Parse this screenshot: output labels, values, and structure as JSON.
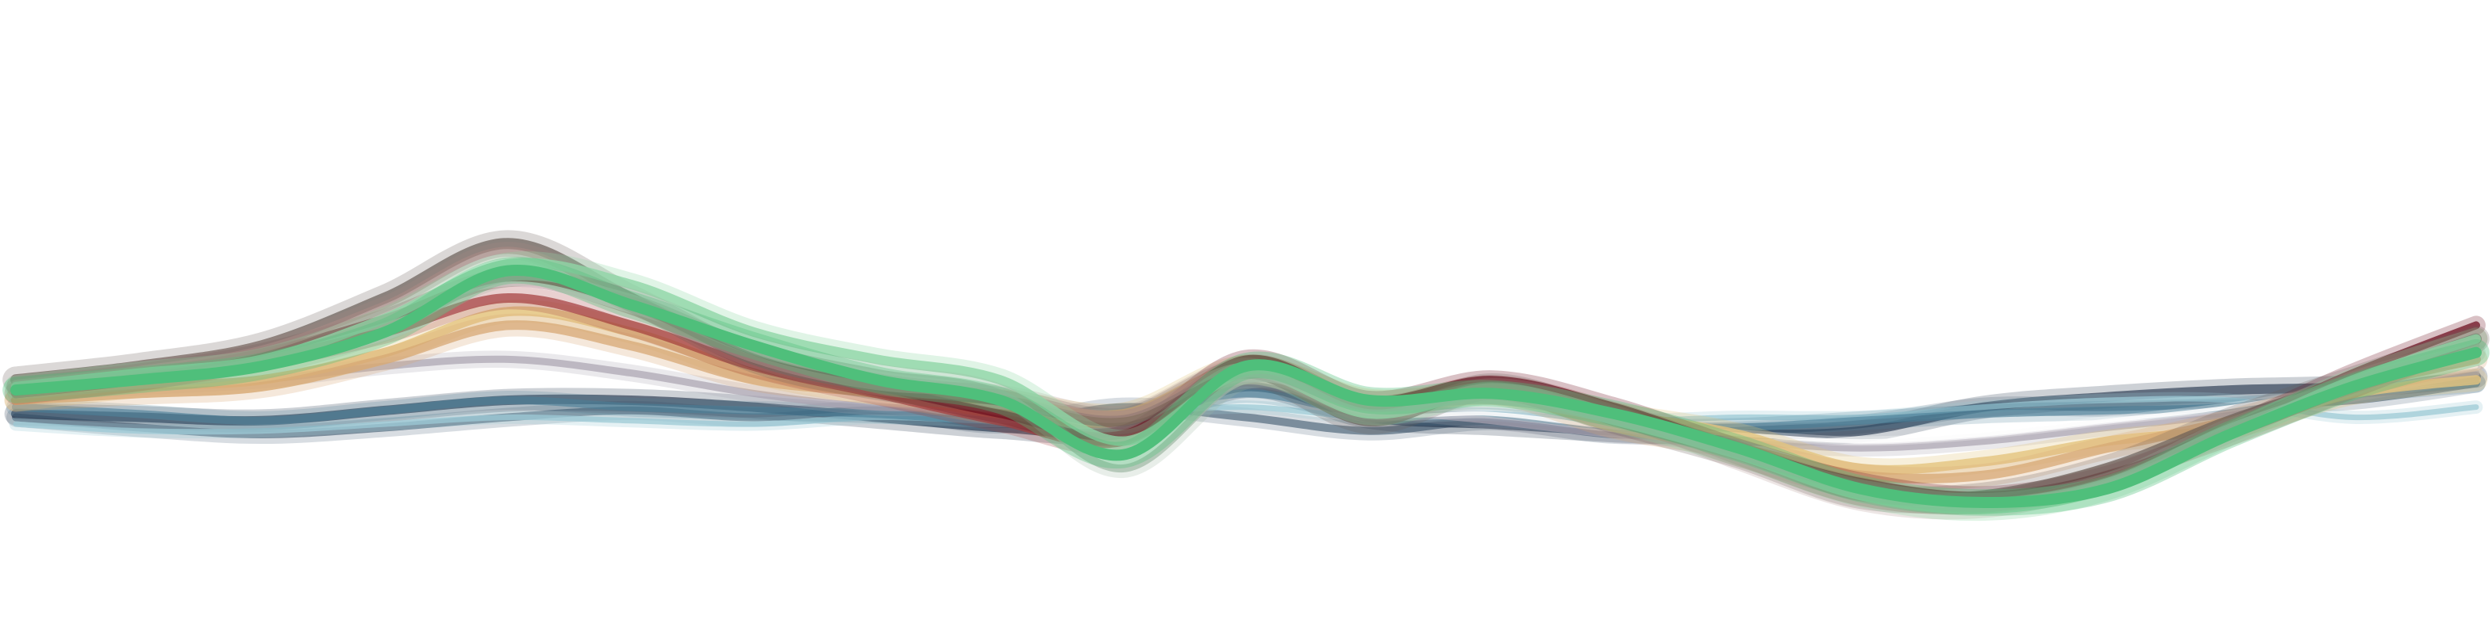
{
  "chart_data": {
    "type": "line",
    "title": "",
    "xlabel": "",
    "ylabel": "",
    "axes_visible": false,
    "grid": false,
    "legend": "none",
    "x_range": [
      0,
      100
    ],
    "y_range": [
      -1,
      1
    ],
    "x": [
      0,
      5,
      10,
      15,
      20,
      25,
      30,
      35,
      40,
      45,
      50,
      55,
      60,
      65,
      70,
      75,
      80,
      85,
      90,
      95,
      100
    ],
    "series": [
      {
        "color": "#2f4a63",
        "opacity": 0.55,
        "width": 10,
        "values": [
          -0.05,
          -0.08,
          -0.1,
          -0.08,
          -0.05,
          -0.03,
          -0.05,
          -0.03,
          -0.07,
          -0.02,
          -0.05,
          -0.09,
          -0.06,
          -0.1,
          -0.09,
          -0.07,
          -0.02,
          -0.02,
          -0.01,
          0.0,
          0.05
        ]
      },
      {
        "color": "#26384f",
        "opacity": 0.65,
        "width": 12,
        "values": [
          -0.04,
          -0.05,
          -0.06,
          -0.03,
          0.0,
          0.0,
          -0.02,
          -0.05,
          -0.08,
          -0.09,
          0.04,
          -0.05,
          -0.07,
          -0.09,
          -0.1,
          -0.09,
          -0.02,
          0.01,
          0.03,
          0.04,
          0.07
        ]
      },
      {
        "color": "#9ccad6",
        "opacity": 0.75,
        "width": 7,
        "values": [
          -0.07,
          -0.09,
          -0.09,
          -0.07,
          -0.05,
          -0.06,
          -0.07,
          -0.05,
          -0.06,
          -0.04,
          -0.02,
          -0.05,
          -0.04,
          -0.06,
          -0.05,
          -0.05,
          -0.02,
          0.0,
          0.0,
          -0.05,
          -0.02
        ]
      },
      {
        "color": "#4a7f97",
        "opacity": 0.6,
        "width": 10,
        "values": [
          -0.02,
          -0.04,
          -0.06,
          -0.03,
          0.0,
          -0.02,
          -0.03,
          -0.04,
          -0.06,
          -0.05,
          0.02,
          -0.04,
          -0.05,
          -0.08,
          -0.08,
          -0.06,
          -0.04,
          -0.03,
          -0.02,
          0.02,
          0.05
        ]
      },
      {
        "color": "#a9a3b0",
        "opacity": 0.7,
        "width": 9,
        "values": [
          0.02,
          0.04,
          0.06,
          0.1,
          0.12,
          0.08,
          0.02,
          -0.02,
          -0.02,
          -0.06,
          0.06,
          -0.02,
          -0.06,
          -0.1,
          -0.12,
          -0.14,
          -0.12,
          -0.08,
          -0.04,
          0.02,
          0.08
        ]
      },
      {
        "color": "#ffffff",
        "opacity": 0.85,
        "width": 5,
        "values": [
          0.04,
          0.06,
          0.08,
          0.16,
          0.2,
          0.12,
          0.06,
          0.0,
          -0.02,
          -0.06,
          0.06,
          -0.04,
          -0.04,
          -0.08,
          -0.1,
          -0.12,
          -0.1,
          -0.06,
          -0.02,
          0.04,
          0.1
        ]
      },
      {
        "color": "#e3c47e",
        "opacity": 0.8,
        "width": 12,
        "values": [
          0.0,
          0.04,
          0.06,
          0.14,
          0.26,
          0.2,
          0.08,
          0.02,
          0.0,
          -0.04,
          0.1,
          0.0,
          0.02,
          -0.04,
          -0.1,
          -0.2,
          -0.18,
          -0.12,
          -0.08,
          0.02,
          0.06
        ]
      },
      {
        "color": "#d7a874",
        "opacity": 0.75,
        "width": 12,
        "values": [
          0.0,
          0.02,
          0.04,
          0.12,
          0.22,
          0.16,
          0.06,
          0.02,
          -0.04,
          -0.06,
          0.08,
          -0.02,
          0.02,
          -0.08,
          -0.14,
          -0.22,
          -0.22,
          -0.14,
          -0.06,
          0.04,
          0.12
        ]
      },
      {
        "color": "#a23a3a",
        "opacity": 0.7,
        "width": 12,
        "values": [
          0.02,
          0.06,
          0.12,
          0.2,
          0.3,
          0.22,
          0.1,
          0.02,
          -0.06,
          -0.12,
          0.1,
          -0.02,
          0.04,
          -0.04,
          -0.16,
          -0.26,
          -0.3,
          -0.22,
          -0.1,
          0.04,
          0.18
        ]
      },
      {
        "color": "#6e1020",
        "opacity": 0.75,
        "width": 10,
        "values": [
          0.04,
          0.08,
          0.14,
          0.24,
          0.36,
          0.28,
          0.12,
          0.04,
          -0.04,
          -0.1,
          0.12,
          0.0,
          0.06,
          -0.02,
          -0.14,
          -0.24,
          -0.28,
          -0.22,
          -0.08,
          0.08,
          0.22
        ]
      },
      {
        "color": "#6a5e57",
        "opacity": 0.7,
        "width": 14,
        "values": [
          0.06,
          0.1,
          0.16,
          0.3,
          0.46,
          0.3,
          0.12,
          0.04,
          0.0,
          -0.06,
          0.08,
          -0.06,
          0.04,
          -0.06,
          -0.16,
          -0.28,
          -0.28,
          -0.2,
          -0.06,
          0.06,
          0.18
        ]
      },
      {
        "color": "#a88a86",
        "opacity": 0.6,
        "width": 9,
        "values": [
          0.05,
          0.09,
          0.15,
          0.28,
          0.44,
          0.28,
          0.12,
          0.04,
          0.02,
          -0.04,
          0.1,
          -0.04,
          0.04,
          -0.04,
          -0.18,
          -0.3,
          -0.32,
          -0.24,
          -0.1,
          0.06,
          0.16
        ]
      },
      {
        "color": "#8fd6a6",
        "opacity": 0.8,
        "width": 12,
        "values": [
          0.04,
          0.08,
          0.12,
          0.24,
          0.4,
          0.34,
          0.2,
          0.12,
          0.06,
          -0.12,
          0.08,
          -0.04,
          0.02,
          -0.06,
          -0.16,
          -0.28,
          -0.32,
          -0.26,
          -0.1,
          0.06,
          0.18
        ]
      },
      {
        "color": "#9fb8a4",
        "opacity": 0.7,
        "width": 10,
        "values": [
          0.03,
          0.06,
          0.1,
          0.2,
          0.36,
          0.3,
          0.16,
          0.08,
          0.02,
          -0.2,
          0.06,
          -0.02,
          0.0,
          -0.06,
          -0.16,
          -0.26,
          -0.3,
          -0.24,
          -0.08,
          0.04,
          0.14
        ]
      },
      {
        "color": "#4fbf7b",
        "opacity": 1.0,
        "width": 14,
        "values": [
          0.03,
          0.06,
          0.1,
          0.2,
          0.38,
          0.28,
          0.16,
          0.06,
          0.0,
          -0.16,
          0.1,
          0.0,
          0.02,
          -0.04,
          -0.14,
          -0.26,
          -0.3,
          -0.26,
          -0.1,
          0.04,
          0.14
        ]
      }
    ]
  }
}
